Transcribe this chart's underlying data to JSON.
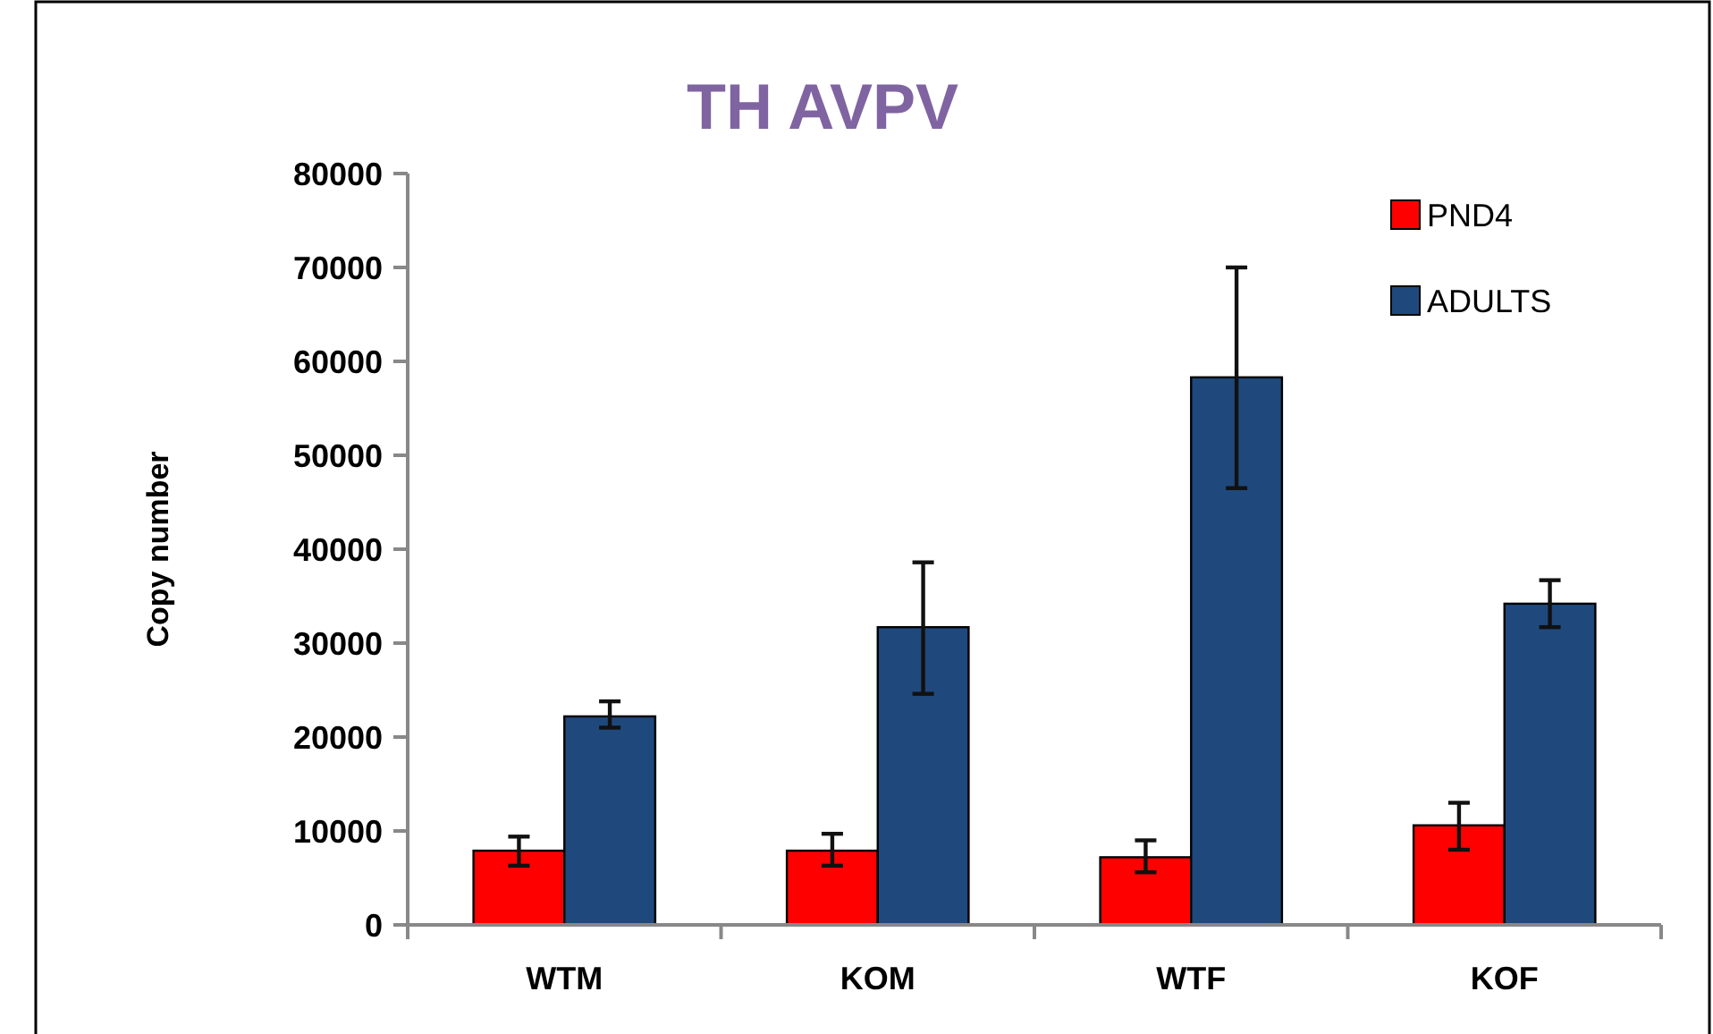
{
  "chart_data": {
    "type": "bar",
    "title": "TH AVPV",
    "ylabel": "Copy number",
    "categories": [
      "WTM",
      "KOM",
      "WTF",
      "KOF"
    ],
    "series": [
      {
        "name": "PND4",
        "color": "#ff0000",
        "values": [
          7900,
          7900,
          7200,
          10600
        ],
        "errors": [
          [
            6300,
            9400
          ],
          [
            6300,
            9700
          ],
          [
            5600,
            9000
          ],
          [
            8000,
            13000
          ]
        ]
      },
      {
        "name": "ADULTS",
        "color": "#1f497d",
        "values": [
          22200,
          31700,
          58300,
          34200
        ],
        "errors": [
          [
            21000,
            23800
          ],
          [
            24600,
            38600
          ],
          [
            46500,
            70000
          ],
          [
            31700,
            36700
          ]
        ]
      }
    ],
    "ylim": [
      0,
      80000
    ],
    "yticks": [
      0,
      10000,
      20000,
      30000,
      40000,
      50000,
      60000,
      70000,
      80000
    ],
    "grid": false,
    "legend": "top right"
  }
}
